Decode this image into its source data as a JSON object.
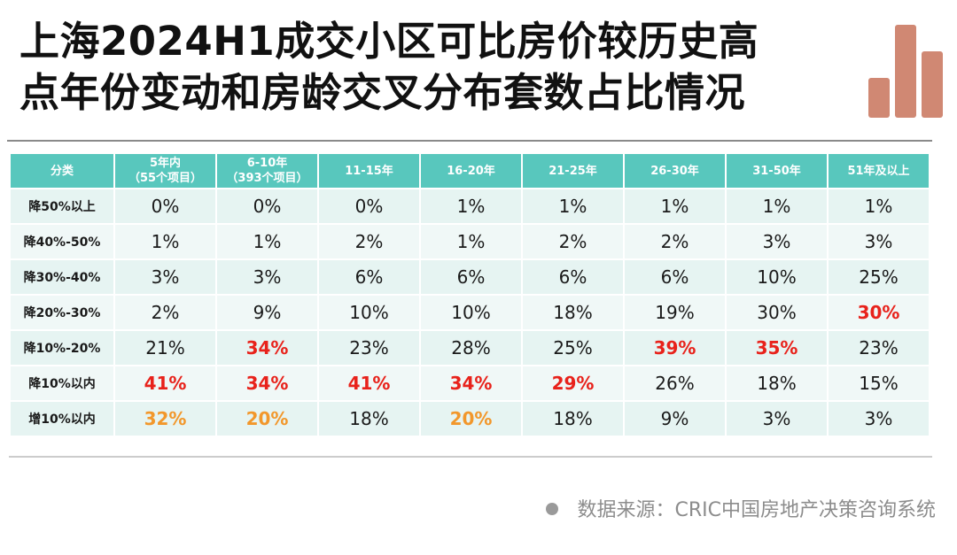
{
  "title": {
    "line1": "上海2024H1成交小区可比房价较历史高",
    "line2": "点年份变动和房龄交叉分布套数占比情况"
  },
  "colors": {
    "header_bg": "#58c7bd",
    "highlight_red": "#e8221b",
    "highlight_orange": "#f2972b",
    "logo_bars": "#d08873"
  },
  "logo_icon": "bar-chart-logo-icon",
  "table": {
    "headers": [
      {
        "line1": "分类",
        "line2": ""
      },
      {
        "line1": "5年内",
        "line2": "（55个项目）"
      },
      {
        "line1": "6-10年",
        "line2": "（393个项目）"
      },
      {
        "line1": "11-15年",
        "line2": ""
      },
      {
        "line1": "16-20年",
        "line2": ""
      },
      {
        "line1": "21-25年",
        "line2": ""
      },
      {
        "line1": "26-30年",
        "line2": ""
      },
      {
        "line1": "31-50年",
        "line2": ""
      },
      {
        "line1": "51年及以上",
        "line2": ""
      }
    ],
    "rows": [
      {
        "label": "降50%以上",
        "cells": [
          {
            "v": "0%",
            "h": ""
          },
          {
            "v": "0%",
            "h": ""
          },
          {
            "v": "0%",
            "h": ""
          },
          {
            "v": "1%",
            "h": ""
          },
          {
            "v": "1%",
            "h": ""
          },
          {
            "v": "1%",
            "h": ""
          },
          {
            "v": "1%",
            "h": ""
          },
          {
            "v": "1%",
            "h": ""
          }
        ]
      },
      {
        "label": "降40%-50%",
        "cells": [
          {
            "v": "1%",
            "h": ""
          },
          {
            "v": "1%",
            "h": ""
          },
          {
            "v": "2%",
            "h": ""
          },
          {
            "v": "1%",
            "h": ""
          },
          {
            "v": "2%",
            "h": ""
          },
          {
            "v": "2%",
            "h": ""
          },
          {
            "v": "3%",
            "h": ""
          },
          {
            "v": "3%",
            "h": ""
          }
        ]
      },
      {
        "label": "降30%-40%",
        "cells": [
          {
            "v": "3%",
            "h": ""
          },
          {
            "v": "3%",
            "h": ""
          },
          {
            "v": "6%",
            "h": ""
          },
          {
            "v": "6%",
            "h": ""
          },
          {
            "v": "6%",
            "h": ""
          },
          {
            "v": "6%",
            "h": ""
          },
          {
            "v": "10%",
            "h": ""
          },
          {
            "v": "25%",
            "h": ""
          }
        ]
      },
      {
        "label": "降20%-30%",
        "cells": [
          {
            "v": "2%",
            "h": ""
          },
          {
            "v": "9%",
            "h": ""
          },
          {
            "v": "10%",
            "h": ""
          },
          {
            "v": "10%",
            "h": ""
          },
          {
            "v": "18%",
            "h": ""
          },
          {
            "v": "19%",
            "h": ""
          },
          {
            "v": "30%",
            "h": ""
          },
          {
            "v": "30%",
            "h": "red"
          }
        ]
      },
      {
        "label": "降10%-20%",
        "cells": [
          {
            "v": "21%",
            "h": ""
          },
          {
            "v": "34%",
            "h": "red"
          },
          {
            "v": "23%",
            "h": ""
          },
          {
            "v": "28%",
            "h": ""
          },
          {
            "v": "25%",
            "h": ""
          },
          {
            "v": "39%",
            "h": "red"
          },
          {
            "v": "35%",
            "h": "red"
          },
          {
            "v": "23%",
            "h": ""
          }
        ]
      },
      {
        "label": "降10%以内",
        "cells": [
          {
            "v": "41%",
            "h": "red"
          },
          {
            "v": "34%",
            "h": "red"
          },
          {
            "v": "41%",
            "h": "red"
          },
          {
            "v": "34%",
            "h": "red"
          },
          {
            "v": "29%",
            "h": "red"
          },
          {
            "v": "26%",
            "h": ""
          },
          {
            "v": "18%",
            "h": ""
          },
          {
            "v": "15%",
            "h": ""
          }
        ]
      },
      {
        "label": "增10%以内",
        "cells": [
          {
            "v": "32%",
            "h": "orange"
          },
          {
            "v": "20%",
            "h": "orange"
          },
          {
            "v": "18%",
            "h": ""
          },
          {
            "v": "20%",
            "h": "orange"
          },
          {
            "v": "18%",
            "h": ""
          },
          {
            "v": "9%",
            "h": ""
          },
          {
            "v": "3%",
            "h": ""
          },
          {
            "v": "3%",
            "h": ""
          }
        ]
      }
    ]
  },
  "source": {
    "icon": "bullet-dot-icon",
    "text": "数据来源：CRIC中国房地产决策咨询系统"
  }
}
